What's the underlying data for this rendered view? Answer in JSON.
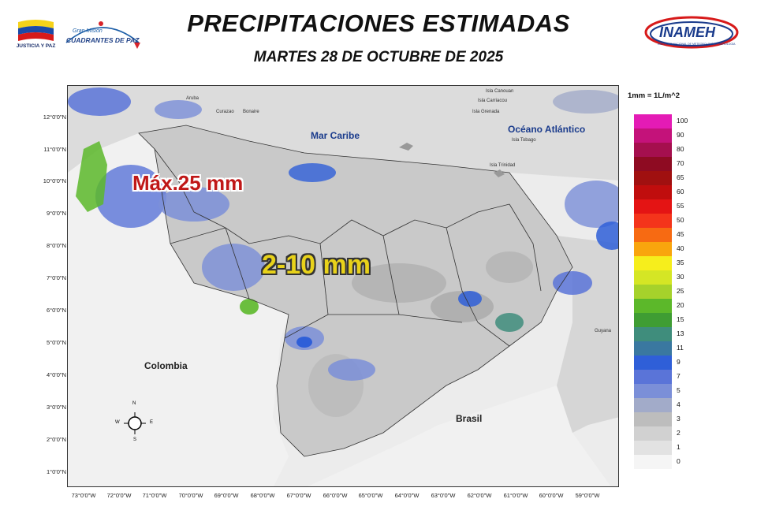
{
  "header": {
    "title": "PRECIPITACIONES ESTIMADAS",
    "subtitle": "MARTES 28 DE OCTUBRE DE 2025"
  },
  "logos": {
    "left1": "JUSTICIA Y PAZ",
    "left2_line1": "Gran Misión",
    "left2_line2": "CUADRANTES DE PAZ",
    "right_name": "INAMEH",
    "right_tagline": "INSTITUTO NACIONAL DE METEOROLOGÍA E HIDROLOGÍA"
  },
  "map": {
    "sea_labels": [
      "Mar Caribe",
      "Océano Atlántico"
    ],
    "country_labels": [
      "Colombia",
      "Brasil"
    ],
    "island_labels": [
      "Isla Canouan",
      "Isla Carriacou",
      "Isla Grenada",
      "Isla Tobago",
      "Isla Trinidad",
      "Aruba",
      "Curazao",
      "Bonaire",
      "Guyana"
    ],
    "max_label": "Máx.25 mm",
    "range_label": "2-10 mm",
    "compass": {
      "n": "N",
      "s": "S",
      "e": "E",
      "w": "W"
    },
    "lat_labels": [
      "12°0'0\"N",
      "11°0'0\"N",
      "10°0'0\"N",
      "9°0'0\"N",
      "8°0'0\"N",
      "7°0'0\"N",
      "6°0'0\"N",
      "5°0'0\"N",
      "4°0'0\"N",
      "3°0'0\"N",
      "2°0'0\"N",
      "1°0'0\"N"
    ],
    "lon_labels": [
      "73°0'0\"W",
      "72°0'0\"W",
      "71°0'0\"W",
      "70°0'0\"W",
      "69°0'0\"W",
      "68°0'0\"W",
      "67°0'0\"W",
      "66°0'0\"W",
      "65°0'0\"W",
      "64°0'0\"W",
      "63°0'0\"W",
      "62°0'0\"W",
      "61°0'0\"W",
      "60°0'0\"W",
      "59°0'0\"W"
    ]
  },
  "legend": {
    "title": "1mm = 1L/m^2",
    "items": [
      {
        "label": "100",
        "color": "#e41bb5"
      },
      {
        "label": "90",
        "color": "#c4127a"
      },
      {
        "label": "80",
        "color": "#a50f4e"
      },
      {
        "label": "70",
        "color": "#8e0b22"
      },
      {
        "label": "65",
        "color": "#a01010"
      },
      {
        "label": "60",
        "color": "#c00d0d"
      },
      {
        "label": "55",
        "color": "#e41414"
      },
      {
        "label": "50",
        "color": "#f4341b"
      },
      {
        "label": "45",
        "color": "#f76a12"
      },
      {
        "label": "40",
        "color": "#f9a50d"
      },
      {
        "label": "35",
        "color": "#f6ee1c"
      },
      {
        "label": "30",
        "color": "#d5e625"
      },
      {
        "label": "25",
        "color": "#a6d22b"
      },
      {
        "label": "20",
        "color": "#5cb82a"
      },
      {
        "label": "15",
        "color": "#3f9d33"
      },
      {
        "label": "13",
        "color": "#3f8d7c"
      },
      {
        "label": "11",
        "color": "#3a78a0"
      },
      {
        "label": "9",
        "color": "#2f5fd8"
      },
      {
        "label": "7",
        "color": "#5a74d8"
      },
      {
        "label": "5",
        "color": "#7b8fd8"
      },
      {
        "label": "4",
        "color": "#a2abc9"
      },
      {
        "label": "3",
        "color": "#bdbdbd"
      },
      {
        "label": "2",
        "color": "#d1d1d1"
      },
      {
        "label": "1",
        "color": "#e2e2e2"
      },
      {
        "label": "0",
        "color": "#f5f5f5"
      }
    ]
  }
}
